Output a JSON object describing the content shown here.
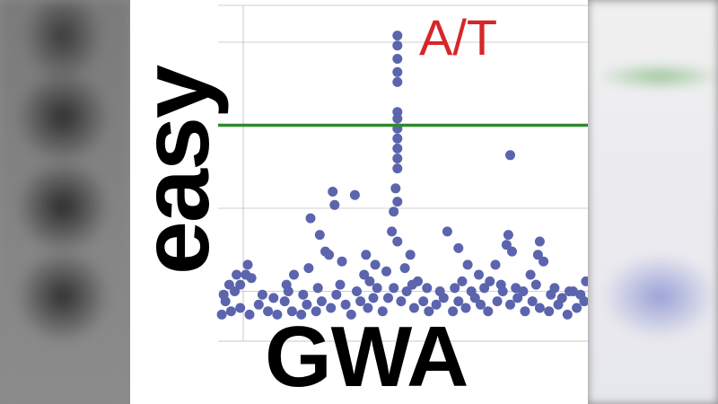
{
  "chart_data": {
    "type": "scatter",
    "title": "",
    "xlabel": "GWA",
    "ylabel": "easy",
    "annotation": "A/T",
    "xlim": [
      0,
      100
    ],
    "ylim": [
      0,
      10
    ],
    "grid": true,
    "threshold": 6.5,
    "colors": {
      "points": "#5b64ad",
      "threshold": "#2e8b2e",
      "annotation": "#d62728",
      "grid": "#d0d0d0"
    },
    "points": [
      [
        48.5,
        9.2
      ],
      [
        48.5,
        8.9
      ],
      [
        48.5,
        8.5
      ],
      [
        48.5,
        8.1
      ],
      [
        48.5,
        7.8
      ],
      [
        48.5,
        6.9
      ],
      [
        48.5,
        6.7
      ],
      [
        48.5,
        6.4
      ],
      [
        48.5,
        6.1
      ],
      [
        48.5,
        5.8
      ],
      [
        48.5,
        5.5
      ],
      [
        48.5,
        5.2
      ],
      [
        48.0,
        4.6
      ],
      [
        48.5,
        4.2
      ],
      [
        47.5,
        3.9
      ],
      [
        47.0,
        3.3
      ],
      [
        48.5,
        3.0
      ],
      [
        31.0,
        4.5
      ],
      [
        31.5,
        4.1
      ],
      [
        25.0,
        3.7
      ],
      [
        27.5,
        3.2
      ],
      [
        29.0,
        2.7
      ],
      [
        33.5,
        2.4
      ],
      [
        30.0,
        2.6
      ],
      [
        24.5,
        2.2
      ],
      [
        20.5,
        2.0
      ],
      [
        18.5,
        1.7
      ],
      [
        37.0,
        4.4
      ],
      [
        40.0,
        2.6
      ],
      [
        39.5,
        2.0
      ],
      [
        42.5,
        2.3
      ],
      [
        41.0,
        1.8
      ],
      [
        45.5,
        2.1
      ],
      [
        52.0,
        2.6
      ],
      [
        50.5,
        2.2
      ],
      [
        54.0,
        1.8
      ],
      [
        62.0,
        3.3
      ],
      [
        65.0,
        2.8
      ],
      [
        67.5,
        2.3
      ],
      [
        70.5,
        2.0
      ],
      [
        66.0,
        1.8
      ],
      [
        78.5,
        3.2
      ],
      [
        78.0,
        2.9
      ],
      [
        79.5,
        2.7
      ],
      [
        75.0,
        2.3
      ],
      [
        73.5,
        1.8
      ],
      [
        79.0,
        5.6
      ],
      [
        87.0,
        3.0
      ],
      [
        86.5,
        2.6
      ],
      [
        88.0,
        2.4
      ],
      [
        84.5,
        2.0
      ],
      [
        8.0,
        2.3
      ],
      [
        7.5,
        2.0
      ],
      [
        5.0,
        2.0
      ],
      [
        6.0,
        1.7
      ],
      [
        9.0,
        1.9
      ],
      [
        3.0,
        1.7
      ],
      [
        1.5,
        1.4
      ],
      [
        99.5,
        1.8
      ],
      [
        95.0,
        1.5
      ],
      [
        91.0,
        1.6
      ],
      [
        2.0,
        1.2
      ],
      [
        3.5,
        0.9
      ],
      [
        6.0,
        1.0
      ],
      [
        8.5,
        0.8
      ],
      [
        11.0,
        1.1
      ],
      [
        13.5,
        0.9
      ],
      [
        16.0,
        0.8
      ],
      [
        18.0,
        1.2
      ],
      [
        20.0,
        0.9
      ],
      [
        22.5,
        0.8
      ],
      [
        24.0,
        1.1
      ],
      [
        26.5,
        0.9
      ],
      [
        28.0,
        1.2
      ],
      [
        30.5,
        1.0
      ],
      [
        32.0,
        1.4
      ],
      [
        34.5,
        1.1
      ],
      [
        36.0,
        0.8
      ],
      [
        38.5,
        1.2
      ],
      [
        40.5,
        1.0
      ],
      [
        42.0,
        1.3
      ],
      [
        44.5,
        0.9
      ],
      [
        46.0,
        1.3
      ],
      [
        47.5,
        1.6
      ],
      [
        49.5,
        1.2
      ],
      [
        51.0,
        1.5
      ],
      [
        53.0,
        1.0
      ],
      [
        55.5,
        1.2
      ],
      [
        57.0,
        0.9
      ],
      [
        59.0,
        1.1
      ],
      [
        61.0,
        1.3
      ],
      [
        63.5,
        0.9
      ],
      [
        65.0,
        1.2
      ],
      [
        67.0,
        1.0
      ],
      [
        69.5,
        1.3
      ],
      [
        71.0,
        1.1
      ],
      [
        73.0,
        0.9
      ],
      [
        75.5,
        1.2
      ],
      [
        77.0,
        1.5
      ],
      [
        79.0,
        1.1
      ],
      [
        81.0,
        1.3
      ],
      [
        83.0,
        0.9
      ],
      [
        85.0,
        1.2
      ],
      [
        87.0,
        1.0
      ],
      [
        89.5,
        0.9
      ],
      [
        92.0,
        1.1
      ],
      [
        94.5,
        0.8
      ],
      [
        97.0,
        1.0
      ],
      [
        99.0,
        1.2
      ],
      [
        1.0,
        0.8
      ],
      [
        4.5,
        1.5
      ],
      [
        12.0,
        1.4
      ],
      [
        15.0,
        1.3
      ],
      [
        19.0,
        1.5
      ],
      [
        23.0,
        1.4
      ],
      [
        27.0,
        1.6
      ],
      [
        33.0,
        1.7
      ],
      [
        37.5,
        1.5
      ],
      [
        43.0,
        1.6
      ],
      [
        52.5,
        1.7
      ],
      [
        56.5,
        1.6
      ],
      [
        60.0,
        1.5
      ],
      [
        64.0,
        1.6
      ],
      [
        68.5,
        1.5
      ],
      [
        72.0,
        1.6
      ],
      [
        76.5,
        1.7
      ],
      [
        80.5,
        1.6
      ],
      [
        82.5,
        1.5
      ],
      [
        86.0,
        1.7
      ],
      [
        90.0,
        1.4
      ],
      [
        93.0,
        1.3
      ],
      [
        96.0,
        1.5
      ],
      [
        98.0,
        1.4
      ]
    ]
  }
}
